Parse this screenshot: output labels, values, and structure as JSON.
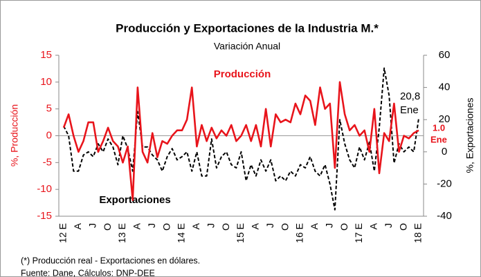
{
  "chart_data": {
    "type": "line",
    "title": "Producción y Exportaciones de la Industria M.*",
    "subtitle": "Variación Anual",
    "ylabel": "%, Producción",
    "y2label": "%, Exportaciones",
    "categories": [
      "12 E",
      null,
      null,
      "A",
      null,
      null,
      "J",
      null,
      null,
      "O",
      null,
      null,
      "13 E",
      null,
      null,
      "A",
      null,
      null,
      "J",
      null,
      null,
      "O",
      null,
      null,
      "14 E",
      null,
      null,
      "A",
      null,
      null,
      "J",
      null,
      null,
      "O",
      null,
      null,
      "15 E",
      null,
      null,
      "A",
      null,
      null,
      "J",
      null,
      null,
      "O",
      null,
      null,
      "16 E",
      null,
      null,
      "A",
      null,
      null,
      "J",
      null,
      null,
      "O",
      null,
      null,
      "17 E",
      null,
      null,
      "A",
      null,
      null,
      "J",
      null,
      null,
      "O",
      null,
      null,
      "18 E"
    ],
    "series": [
      {
        "name": "Producción",
        "color": "#e8141b",
        "axis": "y",
        "values": [
          1.5,
          4,
          0,
          -3,
          -1,
          2.5,
          2.5,
          -3,
          -1,
          1.5,
          -1,
          -2,
          -5,
          -2,
          -12,
          9,
          -3,
          -5,
          0.5,
          -4,
          -1,
          -1.5,
          0,
          1,
          1,
          3,
          9,
          -2,
          2,
          -1,
          1.5,
          -0.5,
          1,
          0,
          2,
          -1,
          0,
          2,
          -1,
          2,
          -2,
          5,
          -2,
          4,
          2.5,
          3,
          2.5,
          6,
          4,
          7.5,
          6.5,
          2,
          9,
          5,
          6,
          -6,
          10,
          4,
          1,
          2,
          0,
          1,
          -3,
          5,
          -7,
          0.5,
          -1,
          6,
          -3,
          0,
          -0.5,
          0.5,
          1.0
        ]
      },
      {
        "name": "Exportaciones",
        "color": "#000000",
        "axis": "y2",
        "values": [
          16,
          10,
          -12,
          -12,
          -2,
          0,
          -3,
          5,
          0,
          8,
          3,
          -8,
          10,
          2,
          -12,
          25,
          3,
          3,
          -2,
          -5,
          -12,
          -3,
          2,
          -5,
          -3,
          0,
          -12,
          0,
          -15,
          -15,
          8,
          -10,
          -3,
          0,
          -8,
          -10,
          0,
          -18,
          -8,
          -15,
          -5,
          -12,
          -5,
          -18,
          -15,
          -18,
          -12,
          -15,
          -8,
          -10,
          -3,
          -12,
          -15,
          -8,
          -20,
          -36,
          20,
          5,
          -5,
          -10,
          3,
          -5,
          6,
          -12,
          15,
          52,
          35,
          -7,
          5,
          0,
          3,
          0,
          20.8
        ]
      }
    ],
    "annotations": [
      "20,8",
      "Ene",
      "1.0",
      "Ene"
    ],
    "ylim": [
      -15,
      15
    ],
    "yticks": [
      -15,
      -10,
      -5,
      0,
      5,
      10,
      15
    ],
    "y2lim": [
      -40,
      60
    ],
    "y2ticks": [
      -40,
      -20,
      0,
      20,
      40,
      60
    ],
    "footnotes": [
      "(*) Producción real - Exportaciones en dólares.",
      "Fuente: Dane, Cálculos: DNP-DEE"
    ]
  }
}
